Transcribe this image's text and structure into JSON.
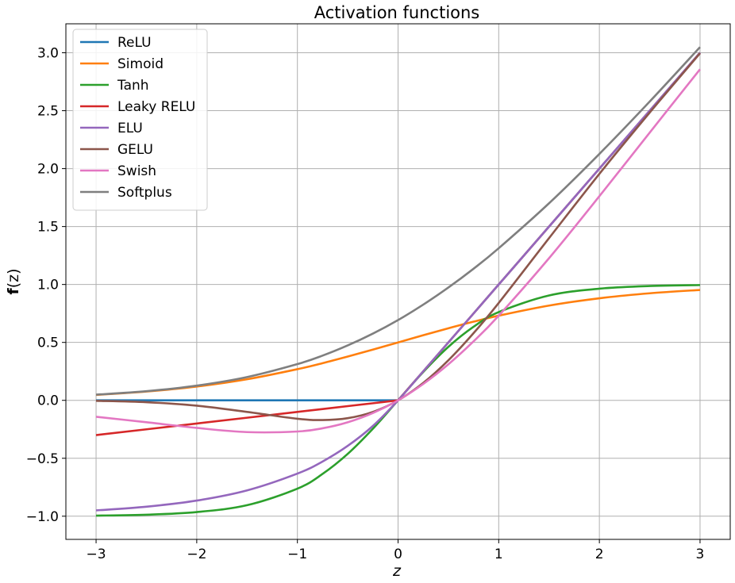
{
  "chart_data": {
    "type": "line",
    "title": "Activation functions",
    "xlabel": "z",
    "ylabel_bold": "f",
    "ylabel_rest": "(z)",
    "xlim": [
      -3.3,
      3.3
    ],
    "ylim": [
      -1.2,
      3.25
    ],
    "xticks": [
      -3,
      -2,
      -1,
      0,
      1,
      2,
      3
    ],
    "xtick_labels": [
      "−3",
      "−2",
      "−1",
      "0",
      "1",
      "2",
      "3"
    ],
    "yticks": [
      -1.0,
      -0.5,
      0.0,
      0.5,
      1.0,
      1.5,
      2.0,
      2.5,
      3.0
    ],
    "ytick_labels": [
      "−1.0",
      "−0.5",
      "0.0",
      "0.5",
      "1.0",
      "1.5",
      "2.0",
      "2.5",
      "3.0"
    ],
    "grid": true,
    "legend_position": "top-left",
    "x": [
      -3.0,
      -2.5,
      -2.0,
      -1.5,
      -1.0,
      -0.75,
      -0.5,
      -0.25,
      0.0,
      0.25,
      0.5,
      0.75,
      1.0,
      1.5,
      2.0,
      2.5,
      3.0
    ],
    "series": [
      {
        "name": "ReLU",
        "color": "#1f77b4",
        "values": [
          0,
          0,
          0,
          0,
          0,
          0,
          0,
          0,
          0,
          0.25,
          0.5,
          0.75,
          1.0,
          1.5,
          2.0,
          2.5,
          3.0
        ]
      },
      {
        "name": "Simoid",
        "color": "#ff7f0e",
        "values": [
          0.047,
          0.076,
          0.119,
          0.182,
          0.269,
          0.321,
          0.378,
          0.438,
          0.5,
          0.562,
          0.622,
          0.679,
          0.731,
          0.818,
          0.881,
          0.924,
          0.953
        ]
      },
      {
        "name": "Tanh",
        "color": "#2ca02c",
        "values": [
          -0.995,
          -0.987,
          -0.964,
          -0.905,
          -0.762,
          -0.635,
          -0.462,
          -0.245,
          0.0,
          0.245,
          0.462,
          0.635,
          0.762,
          0.905,
          0.964,
          0.987,
          0.995
        ]
      },
      {
        "name": "Leaky RELU",
        "color": "#d62728",
        "values": [
          -0.3,
          -0.25,
          -0.2,
          -0.15,
          -0.1,
          -0.075,
          -0.05,
          -0.025,
          0.0,
          0.25,
          0.5,
          0.75,
          1.0,
          1.5,
          2.0,
          2.5,
          3.0
        ]
      },
      {
        "name": "ELU",
        "color": "#9467bd",
        "values": [
          -0.95,
          -0.918,
          -0.865,
          -0.777,
          -0.632,
          -0.528,
          -0.393,
          -0.221,
          0.0,
          0.25,
          0.5,
          0.75,
          1.0,
          1.5,
          2.0,
          2.5,
          3.0
        ]
      },
      {
        "name": "GELU",
        "color": "#8c564b",
        "values": [
          -0.004,
          -0.016,
          -0.046,
          -0.1,
          -0.159,
          -0.17,
          -0.154,
          -0.1,
          0.0,
          0.15,
          0.346,
          0.58,
          0.841,
          1.4,
          1.955,
          2.484,
          2.996
        ]
      },
      {
        "name": "Swish",
        "color": "#e377c2",
        "values": [
          -0.142,
          -0.189,
          -0.238,
          -0.274,
          -0.269,
          -0.241,
          -0.189,
          -0.109,
          0.0,
          0.141,
          0.311,
          0.509,
          0.731,
          1.227,
          1.762,
          2.311,
          2.858
        ]
      },
      {
        "name": "Softplus",
        "color": "#7f7f7f",
        "values": [
          0.049,
          0.079,
          0.127,
          0.201,
          0.313,
          0.386,
          0.474,
          0.576,
          0.693,
          0.826,
          0.974,
          1.136,
          1.313,
          1.701,
          2.127,
          2.579,
          3.049
        ]
      }
    ]
  }
}
